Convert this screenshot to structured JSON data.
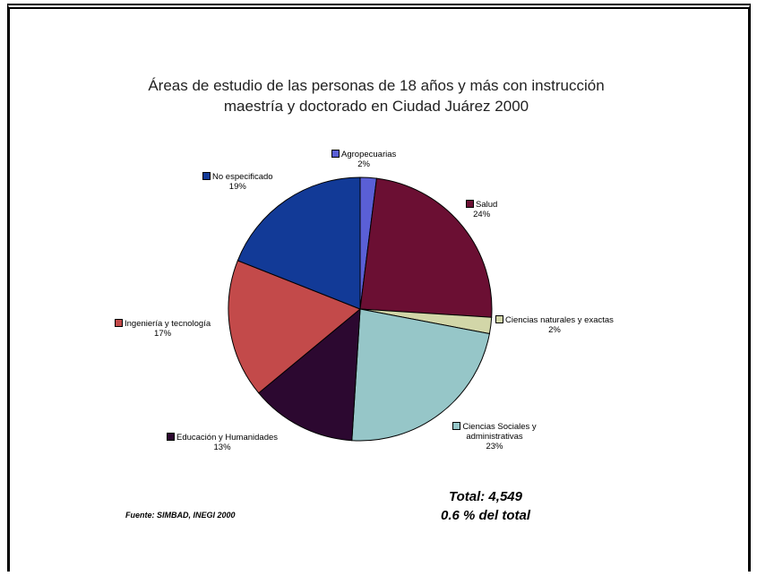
{
  "chart_data": {
    "type": "pie",
    "title_lines": [
      "Áreas de estudio de las personas de 18 años y más con instrucción",
      "maestría y doctorado en Ciudad Juárez 2000"
    ],
    "slices": [
      {
        "label": "Agropecuarias",
        "value": 2,
        "value_label": "2%",
        "color": "#5a5fd6"
      },
      {
        "label": "Salud",
        "value": 24,
        "value_label": "24%",
        "color": "#6b0f33"
      },
      {
        "label": "Ciencias naturales y exactas",
        "value": 2,
        "value_label": "2%",
        "color": "#d2d6a8"
      },
      {
        "label": "Ciencias Sociales y administrativas",
        "value": 23,
        "value_label": "23%",
        "color": "#96c6c8"
      },
      {
        "label": "Educación y Humanidades",
        "value": 13,
        "value_label": "13%",
        "color": "#2c0830"
      },
      {
        "label": "Ingeniería y tecnología",
        "value": 17,
        "value_label": "17%",
        "color": "#c34a4a"
      },
      {
        "label": "No especificado",
        "value": 19,
        "value_label": "19%",
        "color": "#123a97"
      }
    ],
    "legend": "none",
    "start_angle_deg": 0
  },
  "source": "Fuente: SIMBAD, INEGI 2000",
  "total": {
    "line1": "Total: 4,549",
    "line2": "0.6 % del total"
  }
}
